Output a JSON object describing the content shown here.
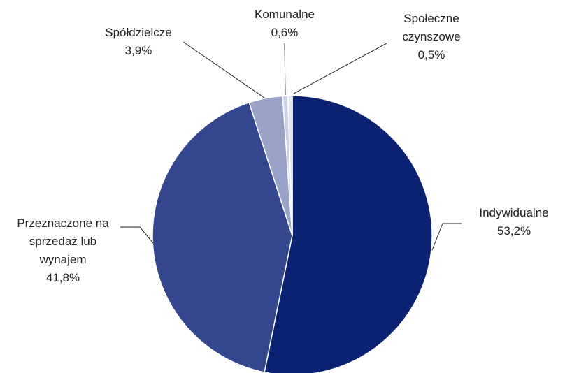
{
  "chart_data": {
    "type": "pie",
    "categories": [
      "Indywidualne",
      "Przeznaczone na sprzedaż lub wynajem",
      "Spółdzielcze",
      "Komunalne",
      "Społeczne czynszowe"
    ],
    "values": [
      53.2,
      41.8,
      3.9,
      0.6,
      0.5
    ],
    "value_labels": [
      "53,2%",
      "41,8%",
      "3,9%",
      "0,6%",
      "0,5%"
    ],
    "colors": [
      "#0b2172",
      "#33468e",
      "#99a3c8",
      "#cdd2e6",
      "#e4e7f2"
    ]
  }
}
